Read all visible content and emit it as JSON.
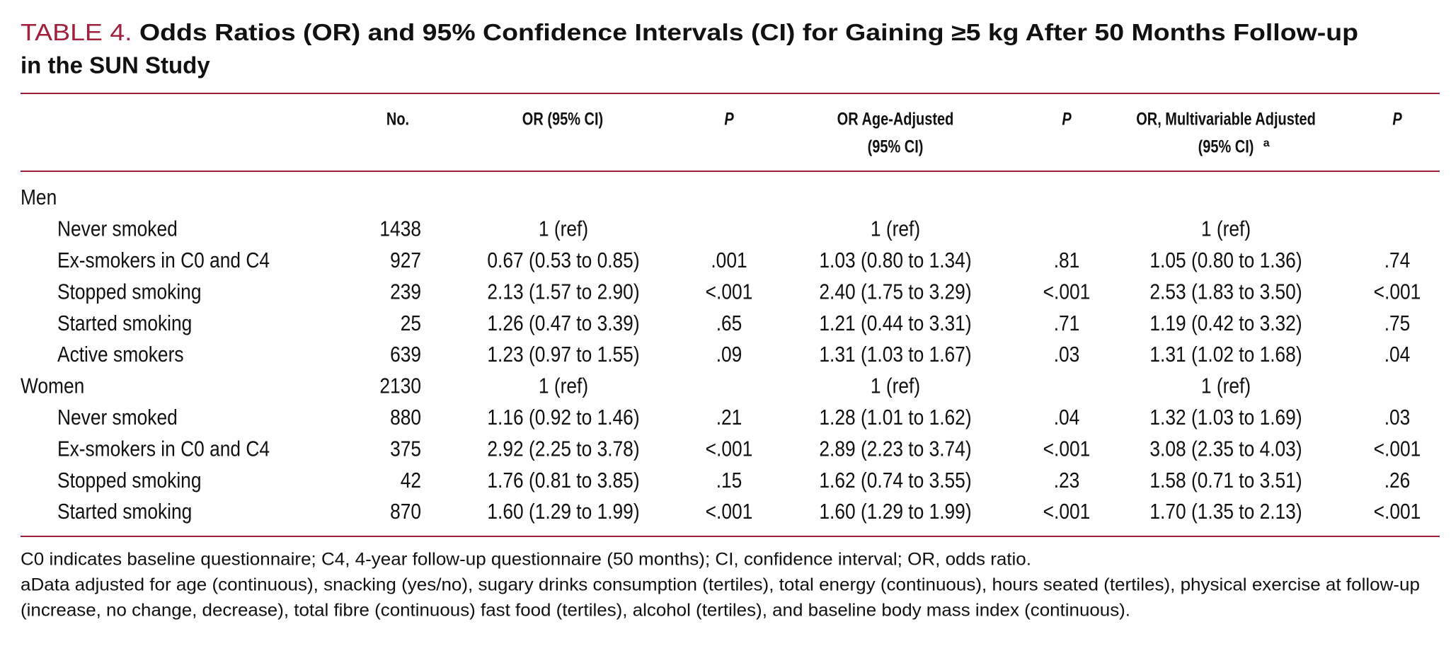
{
  "title": {
    "label": "TABLE 4.",
    "lines": [
      "Odds Ratios (OR) and 95% Confidence Intervals (CI) for Gaining ≥5 kg After 50 Months Follow-up",
      "in the SUN Study"
    ]
  },
  "table": {
    "header": [
      [
        "No."
      ],
      [
        "OR (95% CI)"
      ],
      [
        "P"
      ],
      [
        "OR Age-Adjusted",
        "(95% CI)"
      ],
      [
        "P"
      ],
      [
        "OR, Multivariable Adjusted",
        "(95% CI)"
      ],
      [
        "P"
      ]
    ],
    "header_sup": "a",
    "groups": [
      {
        "cells": [
          "Men",
          null,
          null,
          null,
          null,
          null,
          null,
          null
        ],
        "rows": [
          [
            "Never smoked",
            "1438",
            "1 (ref)",
            null,
            "1 (ref)",
            null,
            "1 (ref)",
            null
          ],
          [
            "Ex-smokers in C0 and C4",
            "927",
            "0.67 (0.53 to 0.85)",
            ".001",
            "1.03 (0.80 to 1.34)",
            ".81",
            "1.05 (0.80 to 1.36)",
            ".74"
          ],
          [
            "Stopped smoking",
            "239",
            "2.13 (1.57 to 2.90)",
            "<.001",
            "2.40 (1.75 to 3.29)",
            "<.001",
            "2.53 (1.83 to 3.50)",
            "<.001"
          ],
          [
            "Started smoking",
            "25",
            "1.26 (0.47 to 3.39)",
            ".65",
            "1.21 (0.44 to 3.31)",
            ".71",
            "1.19 (0.42 to 3.32)",
            ".75"
          ],
          [
            "Active smokers",
            "639",
            "1.23 (0.97 to 1.55)",
            ".09",
            "1.31 (1.03 to 1.67)",
            ".03",
            "1.31 (1.02 to 1.68)",
            ".04"
          ]
        ]
      },
      {
        "cells": [
          "Women",
          "2130",
          "1 (ref)",
          null,
          "1 (ref)",
          null,
          "1 (ref)",
          null
        ],
        "rows": [
          [
            "Never smoked",
            "880",
            "1.16 (0.92 to 1.46)",
            ".21",
            "1.28 (1.01 to 1.62)",
            ".04",
            "1.32 (1.03 to 1.69)",
            ".03"
          ],
          [
            "Ex-smokers in C0 and C4",
            "375",
            "2.92 (2.25 to 3.78)",
            "<.001",
            "2.89 (2.23 to 3.74)",
            "<.001",
            "3.08 (2.35 to 4.03)",
            "<.001"
          ],
          [
            "Stopped smoking",
            "42",
            "1.76 (0.81 to 3.85)",
            ".15",
            "1.62 (0.74 to 3.55)",
            ".23",
            "1.58 (0.71 to 3.51)",
            ".26"
          ],
          [
            "Started smoking",
            "870",
            "1.60 (1.29 to 1.99)",
            "<.001",
            "1.60 (1.29 to 1.99)",
            "<.001",
            "1.70 (1.35 to 2.13)",
            "<.001"
          ]
        ]
      }
    ]
  },
  "notes": [
    [
      "C0 indicates baseline questionnaire; C4, 4-year follow-up questionnaire (50 months); CI, confidence interval; OR, odds ratio."
    ],
    [
      "aData adjusted for age (continuous), snacking (yes/no), sugary drinks consumption (tertiles), total energy (continuous), hours seated (tertiles), physical exercise at follow-up",
      "(increase, no change, decrease), total fibre (continuous) fast food (tertiles), alcohol (tertiles), and baseline body mass index (continuous)."
    ]
  ]
}
